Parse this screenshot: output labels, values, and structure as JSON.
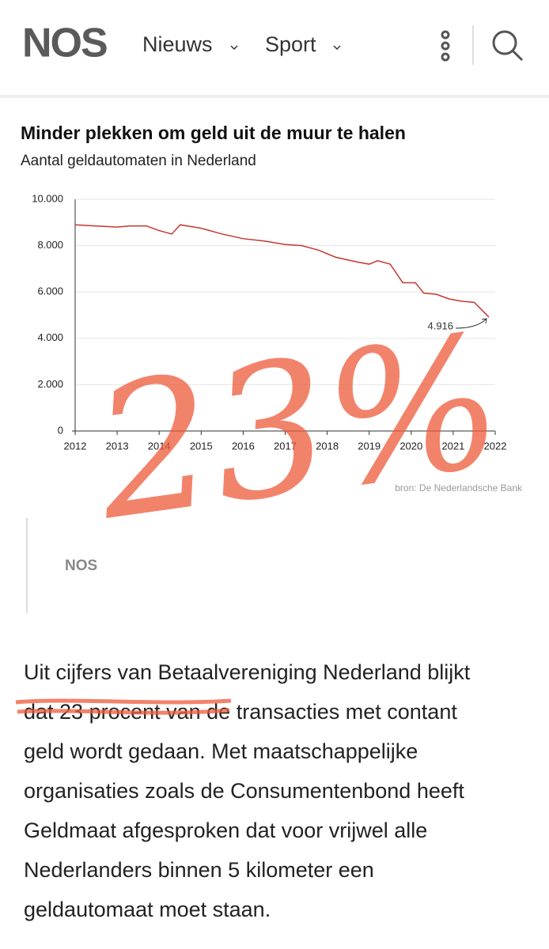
{
  "header": {
    "logo": "NOS",
    "nav": [
      "Nieuws",
      "Sport"
    ]
  },
  "chart_data": {
    "type": "line",
    "title": "Minder plekken om geld uit de muur te halen",
    "subtitle": "Aantal geldautomaten in Nederland",
    "x": [
      2012.0,
      2012.5,
      2013.0,
      2013.3,
      2013.7,
      2014.0,
      2014.3,
      2014.5,
      2015.0,
      2015.5,
      2016.0,
      2016.5,
      2017.0,
      2017.4,
      2017.8,
      2018.2,
      2018.7,
      2019.0,
      2019.2,
      2019.5,
      2019.8,
      2020.1,
      2020.3,
      2020.6,
      2020.9,
      2021.2,
      2021.5,
      2021.85
    ],
    "values": [
      8900,
      8850,
      8800,
      8850,
      8850,
      8650,
      8500,
      8900,
      8750,
      8500,
      8300,
      8200,
      8050,
      8000,
      7800,
      7500,
      7300,
      7200,
      7350,
      7200,
      6400,
      6400,
      5950,
      5900,
      5700,
      5600,
      5550,
      4916
    ],
    "color": "#c8372d",
    "annotation": {
      "value": 4916,
      "label": "4.916"
    },
    "xlim": [
      2012,
      2022
    ],
    "xticks": [
      2012,
      2013,
      2014,
      2015,
      2016,
      2017,
      2018,
      2019,
      2020,
      2021,
      2022
    ],
    "ylim": [
      0,
      10000
    ],
    "yticks": [
      0,
      {
        "value": 2000,
        "label": "2.000"
      },
      {
        "value": 4000,
        "label": "4.000"
      },
      {
        "value": 6000,
        "label": "6.000"
      },
      {
        "value": 8000,
        "label": "8.000"
      },
      {
        "value": 10000,
        "label": "10.000"
      }
    ],
    "grid": true,
    "source": "bron: De Nederlandsche Bank"
  },
  "caption": "NOS",
  "handwritten_note": "23%",
  "article": {
    "lines": [
      "Uit cijfers van Betaalvereniging Nederland blijkt",
      "dat 23 procent van de transacties met contant",
      "geld wordt gedaan. Met maatschappelijke",
      "organisaties zoals de Consumentenbond heeft",
      "Geldmaat afgesproken dat voor vrijwel alle",
      "Nederlanders binnen 5 kilometer een",
      "geldautomaat moet staan."
    ]
  }
}
